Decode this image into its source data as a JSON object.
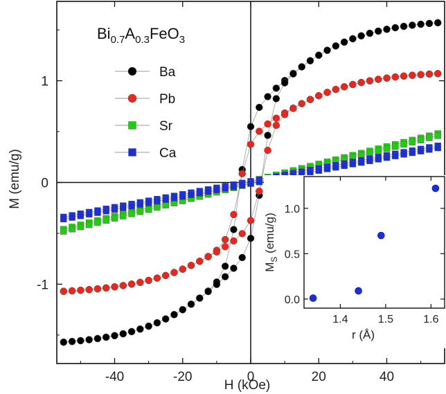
{
  "chart_data": [
    {
      "type": "scatter",
      "title_parts": [
        {
          "text": "Bi",
          "sub": false
        },
        {
          "text": "0.7",
          "sub": true
        },
        {
          "text": "A",
          "sub": false
        },
        {
          "text": "0.3",
          "sub": true
        },
        {
          "text": "FeO",
          "sub": false
        },
        {
          "text": "3",
          "sub": true
        }
      ],
      "xlabel": "H (kOe)",
      "ylabel": "M (emu/g)",
      "xlim": [
        -57,
        57
      ],
      "ylim": [
        -1.78,
        1.78
      ],
      "xticks": [
        -40,
        -20,
        0,
        20,
        40
      ],
      "yticks": [
        -1,
        0,
        1
      ],
      "xtick_labels": [
        "-40",
        "-20",
        "0",
        "20",
        "40"
      ],
      "ytick_labels": [
        "-1",
        "0",
        "1"
      ],
      "legend_placement": "top-left",
      "series": [
        {
          "name": "Ba",
          "color": "#000000",
          "marker": "circle",
          "Ms": 1.6,
          "Mr": 0.55,
          "Hc": 3.5,
          "high_field_M": 1.57
        },
        {
          "name": "Pb",
          "color": "#e8281e",
          "marker": "circle",
          "Ms": 1.12,
          "Mr": 0.28,
          "Hc": 3.5,
          "high_field_M": 1.07
        },
        {
          "name": "Sr",
          "color": "#22cc11",
          "marker": "square",
          "Ms": 0.47,
          "Mr": 0.02,
          "Hc": 0.5,
          "high_field_M": 0.47
        },
        {
          "name": "Ca",
          "color": "#1a2fd6",
          "marker": "square",
          "Ms": 0.35,
          "Mr": 0.01,
          "Hc": 0.5,
          "high_field_M": 0.35
        }
      ]
    },
    {
      "type": "scatter",
      "xlabel": "r (Å)",
      "ylabel_main": "M",
      "ylabel_sub": "S",
      "ylabel_rest": " (emu/g)",
      "xlim": [
        1.32,
        1.63
      ],
      "ylim": [
        -0.1,
        1.35
      ],
      "xticks": [
        1.4,
        1.5,
        1.6
      ],
      "yticks": [
        0.0,
        0.5,
        1.0
      ],
      "xtick_labels": [
        "1.4",
        "1.5",
        "1.6"
      ],
      "ytick_labels": [
        "0.0",
        "0.5",
        "1.0"
      ],
      "color": "#1a2fd6",
      "x": [
        1.34,
        1.44,
        1.49,
        1.61
      ],
      "y": [
        0.01,
        0.09,
        0.7,
        1.22
      ]
    }
  ]
}
